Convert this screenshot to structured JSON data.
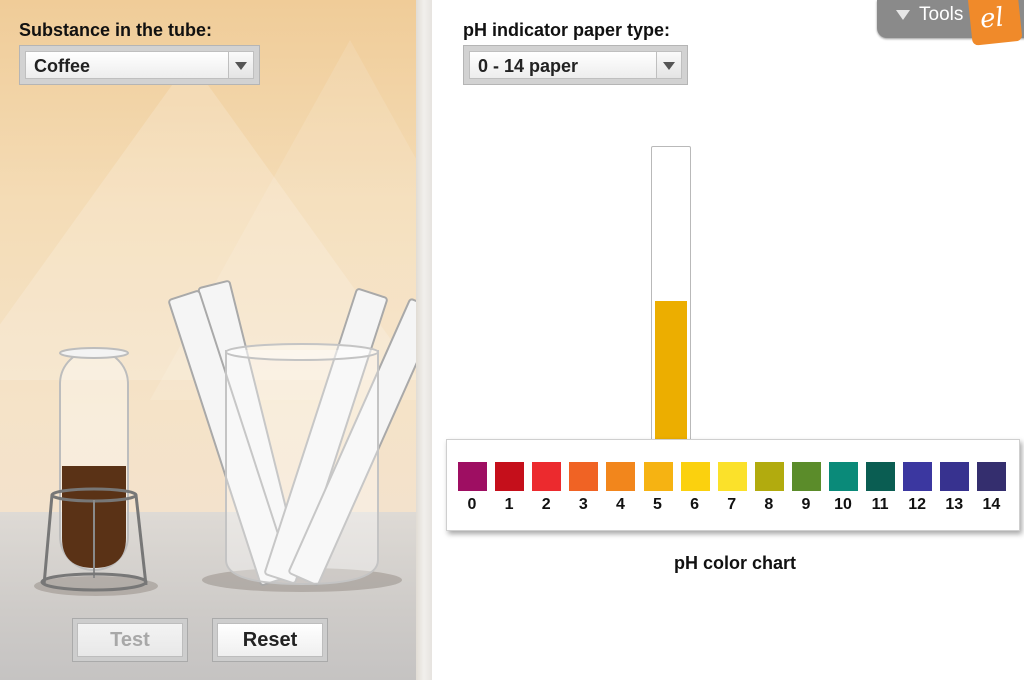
{
  "substance": {
    "label": "Substance in the tube:",
    "selected": "Coffee"
  },
  "indicator": {
    "label": "pH indicator paper type:",
    "selected": "0 - 14 paper"
  },
  "buttons": {
    "test_label": "Test",
    "reset_label": "Reset",
    "test_enabled": false
  },
  "tools": {
    "label": "Tools",
    "logo_text": "el"
  },
  "test_strip": {
    "color": "#ecae00",
    "filled_fraction": 0.5
  },
  "tube_liquid_color": "#5a3216",
  "ph_chart": {
    "title": "pH color chart",
    "swatches": [
      {
        "ph": "0",
        "color": "#9e0e62"
      },
      {
        "ph": "1",
        "color": "#c50f1b"
      },
      {
        "ph": "2",
        "color": "#ec2a2e"
      },
      {
        "ph": "3",
        "color": "#f06324"
      },
      {
        "ph": "4",
        "color": "#f2861c"
      },
      {
        "ph": "5",
        "color": "#f6b312"
      },
      {
        "ph": "6",
        "color": "#fbd10e"
      },
      {
        "ph": "7",
        "color": "#fbe12a"
      },
      {
        "ph": "8",
        "color": "#b2ab0e"
      },
      {
        "ph": "9",
        "color": "#5b8c2a"
      },
      {
        "ph": "10",
        "color": "#0a8a79"
      },
      {
        "ph": "11",
        "color": "#0a5d52"
      },
      {
        "ph": "12",
        "color": "#3b37a0"
      },
      {
        "ph": "13",
        "color": "#37328f"
      },
      {
        "ph": "14",
        "color": "#342e6e"
      }
    ]
  }
}
